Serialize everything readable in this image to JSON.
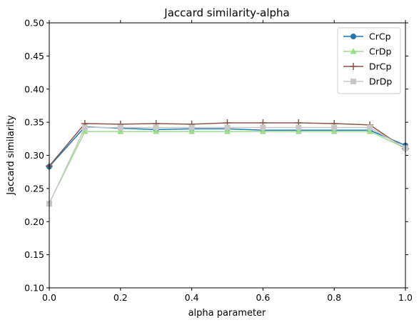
{
  "chart_data": {
    "type": "line",
    "title": "Jaccard similarity-alpha",
    "xlabel": "alpha parameter",
    "ylabel": "Jaccard similarity",
    "xlim": [
      0.0,
      1.0
    ],
    "ylim": [
      0.1,
      0.5
    ],
    "xticks": [
      "0.0",
      "0.2",
      "0.4",
      "0.6",
      "0.8",
      "1.0"
    ],
    "yticks": [
      "0.10",
      "0.15",
      "0.20",
      "0.25",
      "0.30",
      "0.35",
      "0.40",
      "0.45",
      "0.50"
    ],
    "grid": false,
    "legend_position": "top-right",
    "x": [
      0.0,
      0.1,
      0.2,
      0.3,
      0.4,
      0.5,
      0.6,
      0.7,
      0.8,
      0.9,
      1.0
    ],
    "series": [
      {
        "name": "CrCp",
        "marker": "circle",
        "color": "#1f77b4",
        "values": [
          0.283,
          0.343,
          0.341,
          0.339,
          0.34,
          0.34,
          0.338,
          0.338,
          0.338,
          0.338,
          0.315
        ]
      },
      {
        "name": "CrDp",
        "marker": "triangle",
        "color": "#98df8a",
        "values": [
          0.228,
          0.336,
          0.336,
          0.336,
          0.336,
          0.336,
          0.336,
          0.336,
          0.336,
          0.336,
          0.311
        ]
      },
      {
        "name": "DrCp",
        "marker": "plus",
        "color": "#8c564b",
        "values": [
          0.284,
          0.348,
          0.347,
          0.348,
          0.347,
          0.349,
          0.349,
          0.349,
          0.348,
          0.346,
          0.31
        ]
      },
      {
        "name": "DrDp",
        "marker": "square",
        "color": "#c7c7c7",
        "values": [
          0.227,
          0.342,
          0.342,
          0.342,
          0.342,
          0.342,
          0.342,
          0.342,
          0.342,
          0.342,
          0.311
        ]
      }
    ]
  }
}
